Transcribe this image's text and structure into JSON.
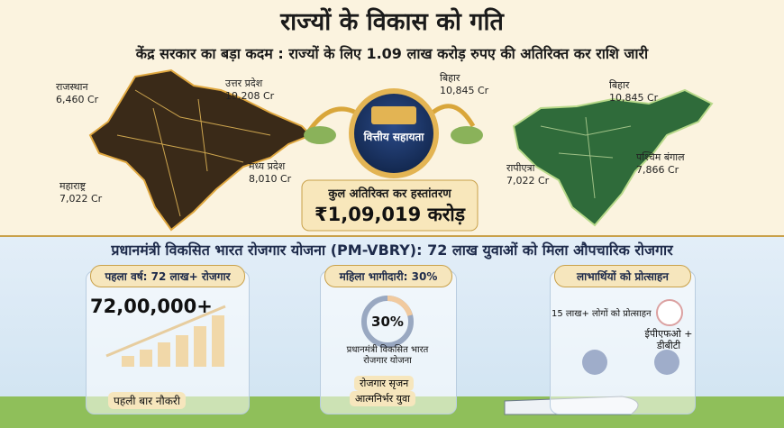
{
  "header": {
    "title": "राज्यों के विकास को गति",
    "subtitle": "केंद्र सरकार का बड़ा कदम : राज्यों के लिए 1.09 लाख करोड़ रुपए की अतिरिक्त कर राशि जारी"
  },
  "left_map": {
    "states": [
      {
        "name": "राजस्थान",
        "amount": "6,460 Cr"
      },
      {
        "name": "उत्तर प्रदेश",
        "amount": "19,208 Cr"
      },
      {
        "name": "महाराष्ट्र",
        "amount": "7,022 Cr"
      },
      {
        "name": "मध्य प्रदेश",
        "amount": "8,010 Cr"
      }
    ]
  },
  "center": {
    "label": "वित्तीय सहायता",
    "flow": {
      "name": "बिहार",
      "amount": "10,845 Cr"
    }
  },
  "right_map": {
    "states": [
      {
        "name": "बिहार",
        "amount": "10,845 Cr"
      },
      {
        "name": "पश्चिम बंगाल",
        "amount": "7,866 Cr"
      },
      {
        "name": "रापीएत्रा",
        "amount": "7,022 Cr"
      }
    ]
  },
  "total": {
    "label": "कुल अतिरिक्त कर हस्तांतरण",
    "amount": "₹1,09,019 करोड़"
  },
  "scheme": {
    "title": "प्रधानमंत्री विकसित भारत रोजगार योजना (PM-VBRY): 72 लाख युवाओं को मिला औपचारिक रोजगार",
    "panels": [
      {
        "title": "पहला वर्ष: 72 लाख+ रोजगार",
        "figure": "72,00,000+",
        "caption": "पहली बार नौकरी"
      },
      {
        "title": "महिला भागीदारी: 30%",
        "figure": "30%",
        "logo_text": "प्रधानमंत्री विकसित भारत रोजगार योजना",
        "tags": [
          "रोजगार सृजन",
          "आत्मनिर्भर युवा"
        ]
      },
      {
        "title": "लाभार्थियों को प्रोत्साहन",
        "note": "15 लाख+ लोगों को प्रोत्साहन",
        "badge": "ईपीएफओ + डीबीटी"
      }
    ]
  }
}
